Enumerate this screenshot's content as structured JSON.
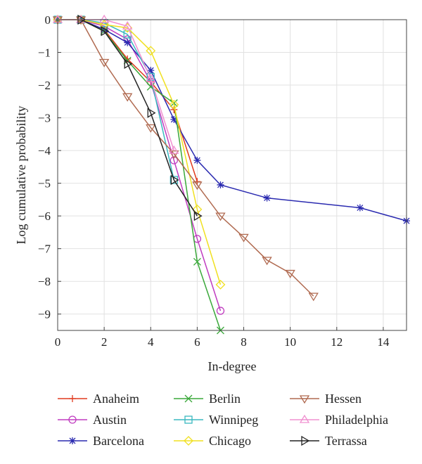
{
  "chart_data": {
    "type": "line",
    "title": "",
    "xlabel": "In-degree",
    "ylabel": "Log cumulative probability",
    "xlim": [
      0,
      15
    ],
    "ylim": [
      -9.5,
      0
    ],
    "xticks": [
      0,
      2,
      4,
      6,
      8,
      10,
      12,
      14
    ],
    "yticks": [
      0,
      -1,
      -2,
      -3,
      -4,
      -5,
      -6,
      -7,
      -8,
      -9
    ],
    "grid": true,
    "legend": "bottom",
    "series": [
      {
        "name": "Anaheim",
        "color": "#e03a1e",
        "marker": "plus",
        "x": [
          0,
          1,
          2,
          3,
          4,
          5,
          6
        ],
        "y": [
          0,
          0,
          -0.3,
          -1.2,
          -1.9,
          -2.75,
          -4.95
        ]
      },
      {
        "name": "Austin",
        "color": "#c03cc0",
        "marker": "circle",
        "x": [
          0,
          1,
          2,
          3,
          4,
          5,
          6,
          7
        ],
        "y": [
          0,
          0,
          -0.2,
          -0.6,
          -1.9,
          -4.3,
          -6.7,
          -8.9
        ]
      },
      {
        "name": "Barcelona",
        "color": "#2a2ab0",
        "marker": "star",
        "x": [
          0,
          1,
          2,
          3,
          4,
          5,
          6,
          7,
          9,
          13,
          15
        ],
        "y": [
          0,
          0,
          -0.3,
          -0.7,
          -1.55,
          -3.05,
          -4.3,
          -5.05,
          -5.45,
          -5.75,
          -6.15
        ]
      },
      {
        "name": "Berlin",
        "color": "#3aa83a",
        "marker": "x",
        "x": [
          0,
          1,
          2,
          3,
          4,
          5,
          6,
          7
        ],
        "y": [
          0,
          0,
          -0.35,
          -1.25,
          -2.05,
          -2.55,
          -7.4,
          -9.5
        ]
      },
      {
        "name": "Winnipeg",
        "color": "#3ab8c0",
        "marker": "square",
        "x": [
          0,
          1,
          2,
          3,
          4,
          5
        ],
        "y": [
          0,
          0,
          -0.1,
          -0.45,
          -1.75,
          -4.9
        ]
      },
      {
        "name": "Chicago",
        "color": "#f0e020",
        "marker": "diamond",
        "x": [
          0,
          1,
          2,
          3,
          4,
          5,
          6,
          7
        ],
        "y": [
          0,
          0,
          -0.15,
          -0.25,
          -0.95,
          -2.6,
          -5.8,
          -8.1
        ]
      },
      {
        "name": "Hessen",
        "color": "#b06a50",
        "marker": "triangle-down",
        "x": [
          0,
          1,
          2,
          3,
          4,
          5,
          6,
          7,
          8,
          9,
          10,
          11
        ],
        "y": [
          0,
          0,
          -1.3,
          -2.35,
          -3.3,
          -4.1,
          -5.05,
          -6.0,
          -6.65,
          -7.35,
          -7.75,
          -8.45
        ]
      },
      {
        "name": "Philadelphia",
        "color": "#f090d0",
        "marker": "triangle-up",
        "x": [
          0,
          1,
          2,
          3,
          4,
          5
        ],
        "y": [
          0,
          0,
          0,
          -0.2,
          -1.8,
          -4.0
        ]
      },
      {
        "name": "Terrassa",
        "color": "#222222",
        "marker": "triangle-right",
        "x": [
          1,
          2,
          3,
          4,
          5,
          6
        ],
        "y": [
          0,
          -0.35,
          -1.35,
          -2.85,
          -4.9,
          -6.0
        ]
      }
    ]
  }
}
